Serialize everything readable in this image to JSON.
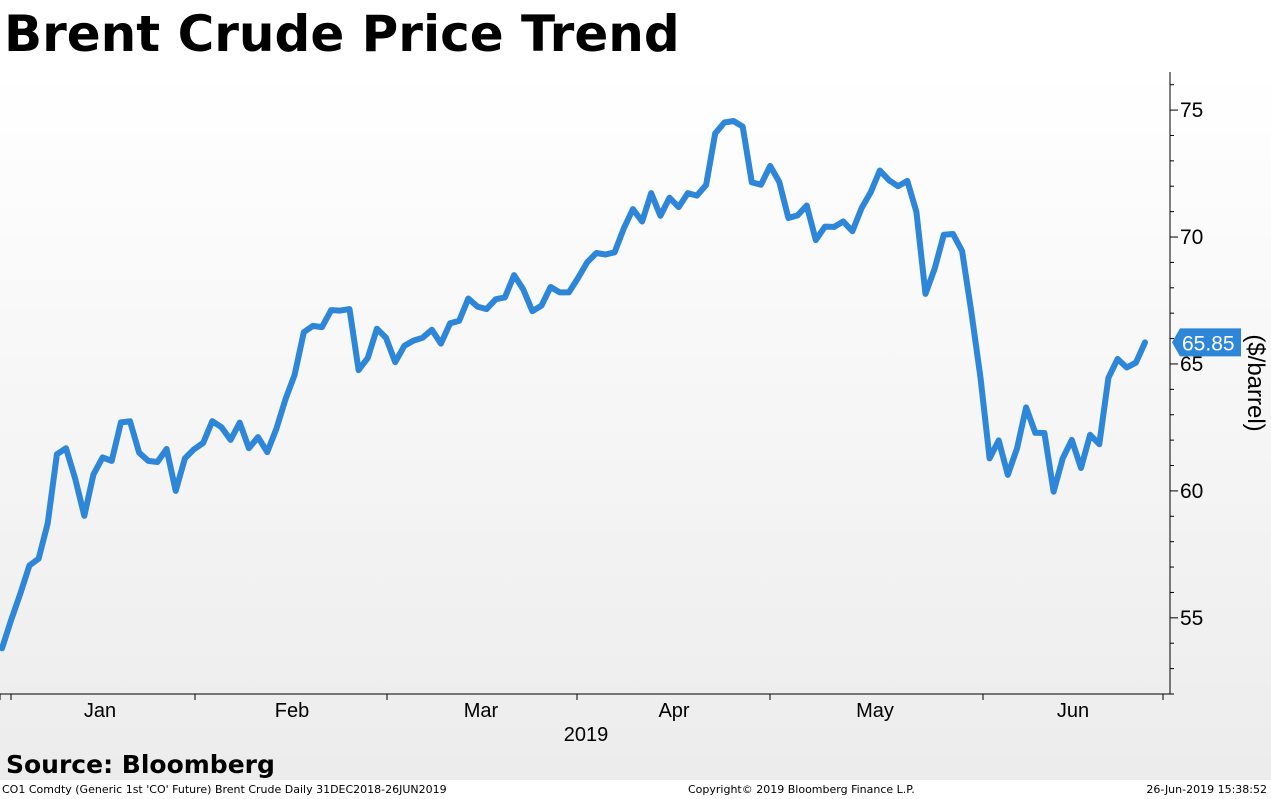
{
  "title": "Brent Crude Price Trend",
  "source": "Source: Bloomberg",
  "footer": {
    "left": "CO1 Comdty (Generic 1st 'CO' Future) Brent Crude  Daily 31DEC2018-26JUN2019",
    "center": "Copyright© 2019 Bloomberg Finance L.P.",
    "right": "26-Jun-2019 15:38:52"
  },
  "colors": {
    "line": "#2e86d8",
    "price_tag": "#2e86d8",
    "axis": "#000000",
    "background_top": "#ffffff",
    "background_bottom": "#ececec"
  },
  "chart_data": {
    "type": "line",
    "title": "Brent Crude Price Trend",
    "ylabel": "($/barrel)",
    "xlabel": "2019",
    "ylim": [
      52,
      76.5
    ],
    "yticks": [
      55,
      60,
      65,
      70,
      75
    ],
    "month_labels": [
      "Jan",
      "Feb",
      "Mar",
      "Apr",
      "May",
      "Jun"
    ],
    "last_value_label": "65.85",
    "grid": false,
    "series": [
      {
        "values": [
          53.8,
          54.91,
          55.95,
          57.06,
          57.33,
          58.72,
          61.44,
          61.68,
          60.48,
          59.02,
          60.64,
          61.32,
          61.18,
          62.7,
          62.74,
          61.5,
          61.18,
          61.14,
          61.65,
          60.0,
          61.28,
          61.64,
          61.89,
          62.75,
          62.51,
          62.01,
          62.69,
          61.68,
          62.12,
          61.53,
          62.44,
          63.61,
          64.57,
          66.25,
          66.5,
          66.45,
          67.12,
          67.1,
          67.16,
          64.76,
          65.24,
          66.39,
          66.03,
          65.07,
          65.71,
          65.92,
          66.03,
          66.35,
          65.8,
          66.6,
          66.7,
          67.58,
          67.26,
          67.16,
          67.55,
          67.62,
          68.5,
          67.94,
          67.08,
          67.3,
          68.03,
          67.82,
          67.82,
          68.39,
          69.01,
          69.37,
          69.31,
          69.4,
          70.34,
          71.1,
          70.61,
          71.73,
          70.83,
          71.55,
          71.18,
          71.73,
          71.63,
          72.05,
          74.08,
          74.51,
          74.57,
          74.35,
          72.15,
          72.06,
          72.8,
          72.18,
          70.75,
          70.85,
          71.24,
          69.88,
          70.41,
          70.4,
          70.61,
          70.23,
          71.13,
          71.76,
          72.62,
          72.24,
          72.0,
          72.21,
          70.99,
          67.76,
          68.76,
          70.09,
          70.12,
          69.45,
          67.06,
          64.49,
          61.28,
          61.99,
          60.63,
          61.67,
          63.29,
          62.29,
          62.28,
          59.97,
          61.28,
          62.01,
          60.9,
          62.21,
          61.84,
          64.45,
          65.2,
          64.86,
          65.05,
          65.85
        ]
      }
    ]
  }
}
